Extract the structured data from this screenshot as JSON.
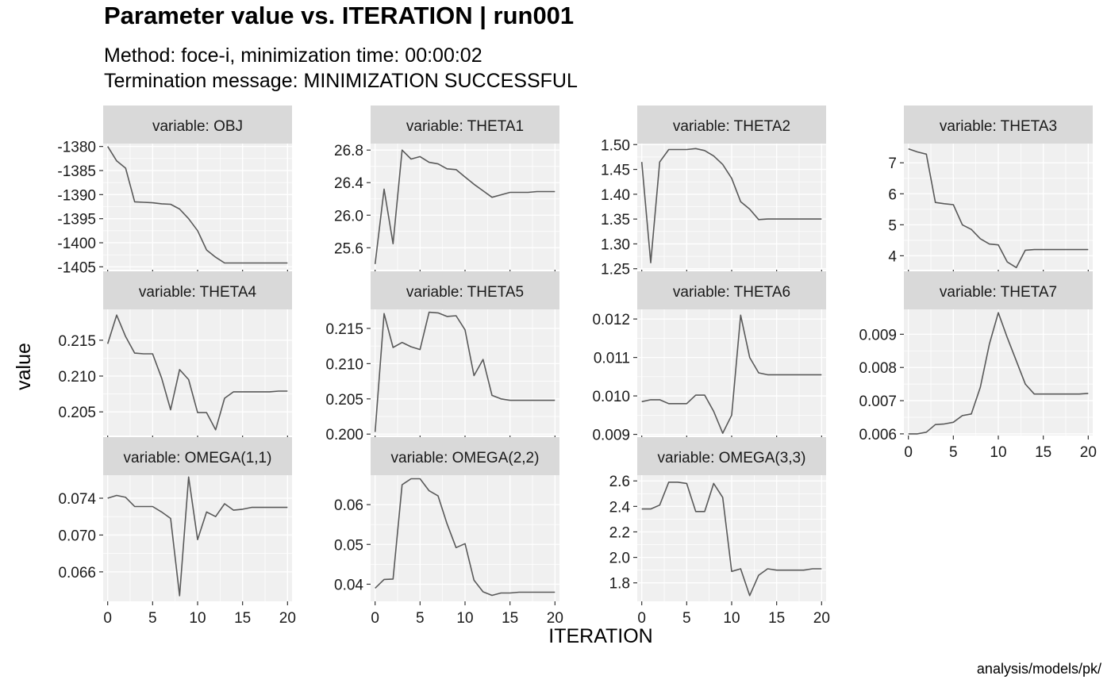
{
  "title": "Parameter value vs. ITERATION | run001",
  "subtitle": [
    "Method: foce-i, minimization time: 00:00:02",
    "Termination message: MINIMIZATION SUCCESSFUL"
  ],
  "caption": "analysis/models/pk/",
  "colors": {
    "panel_bg": "#f0f0f0",
    "strip_bg": "#d9d9d9",
    "grid": "#ffffff",
    "line": "#595959",
    "tick": "#333333"
  },
  "chart_data": {
    "type": "line",
    "xlabel": "ITERATION",
    "ylabel": "value",
    "facet_layout": "4 columns, free y scales",
    "x_ticks": [
      0,
      5,
      10,
      15,
      20
    ],
    "x_tick_labels": [
      "0",
      "5",
      "10",
      "15",
      "20"
    ],
    "xlim": [
      -0.5,
      20.5
    ],
    "x": [
      0,
      1,
      2,
      3,
      4,
      5,
      6,
      7,
      8,
      9,
      10,
      11,
      12,
      13,
      14,
      15,
      16,
      17,
      18,
      19,
      20
    ],
    "panels": [
      {
        "strip": "variable: OBJ",
        "ylim": [
          -1405.6,
          -1379.4
        ],
        "y_ticks": [
          -1380,
          -1385,
          -1390,
          -1395,
          -1400,
          -1405
        ],
        "y_tick_labels": [
          "-1380",
          "-1385",
          "-1390",
          "-1395",
          "-1400",
          "-1405"
        ],
        "values": [
          -1380,
          -1383,
          -1384.5,
          -1391.5,
          -1391.6,
          -1391.7,
          -1391.9,
          -1392,
          -1393,
          -1395,
          -1397.5,
          -1401.5,
          -1403,
          -1404.2,
          -1404.2,
          -1404.2,
          -1404.2,
          -1404.2,
          -1404.2,
          -1404.2,
          -1404.2
        ]
      },
      {
        "strip": "variable: THETA1",
        "ylim": [
          25.33,
          26.88
        ],
        "y_ticks": [
          25.6,
          26.0,
          26.4,
          26.8
        ],
        "y_tick_labels": [
          "25.6",
          "26.0",
          "26.4",
          "26.8"
        ],
        "values": [
          25.4,
          26.32,
          25.65,
          26.8,
          26.69,
          26.72,
          26.65,
          26.63,
          26.57,
          26.56,
          26.47,
          26.38,
          26.3,
          26.22,
          26.25,
          26.28,
          26.28,
          26.28,
          26.29,
          26.29,
          26.29
        ]
      },
      {
        "strip": "variable: THETA2",
        "ylim": [
          1.248,
          1.502
        ],
        "y_ticks": [
          1.25,
          1.3,
          1.35,
          1.4,
          1.45,
          1.5
        ],
        "y_tick_labels": [
          "1.25",
          "1.30",
          "1.35",
          "1.40",
          "1.45",
          "1.50"
        ],
        "values": [
          1.465,
          1.262,
          1.465,
          1.49,
          1.49,
          1.49,
          1.492,
          1.488,
          1.477,
          1.46,
          1.432,
          1.385,
          1.37,
          1.349,
          1.35,
          1.35,
          1.35,
          1.35,
          1.35,
          1.35,
          1.35
        ]
      },
      {
        "strip": "variable: THETA3",
        "ylim": [
          3.55,
          7.62
        ],
        "y_ticks": [
          4,
          5,
          6,
          7
        ],
        "y_tick_labels": [
          "4",
          "5",
          "6",
          "7"
        ],
        "values": [
          7.45,
          7.35,
          7.28,
          5.72,
          5.68,
          5.65,
          5.0,
          4.85,
          4.55,
          4.38,
          4.35,
          3.8,
          3.62,
          4.18,
          4.2,
          4.2,
          4.2,
          4.2,
          4.2,
          4.2,
          4.2
        ]
      },
      {
        "strip": "variable: THETA4",
        "ylim": [
          0.2017,
          0.2193
        ],
        "y_ticks": [
          0.205,
          0.21,
          0.215
        ],
        "y_tick_labels": [
          "0.205",
          "0.210",
          "0.215"
        ],
        "values": [
          0.2145,
          0.2185,
          0.2155,
          0.2132,
          0.2131,
          0.2131,
          0.2097,
          0.2053,
          0.2109,
          0.2095,
          0.2049,
          0.2049,
          0.2025,
          0.2069,
          0.2078,
          0.2078,
          0.2078,
          0.2078,
          0.2078,
          0.2079,
          0.2079
        ]
      },
      {
        "strip": "variable: THETA5",
        "ylim": [
          0.1998,
          0.2177
        ],
        "y_ticks": [
          0.2,
          0.205,
          0.21,
          0.215
        ],
        "y_tick_labels": [
          "0.200",
          "0.205",
          "0.210",
          "0.215"
        ],
        "values": [
          0.2003,
          0.2171,
          0.2123,
          0.213,
          0.2124,
          0.212,
          0.2173,
          0.2172,
          0.2167,
          0.2168,
          0.2148,
          0.2083,
          0.2106,
          0.2055,
          0.205,
          0.2048,
          0.2048,
          0.2048,
          0.2048,
          0.2048,
          0.2048
        ]
      },
      {
        "strip": "variable: THETA6",
        "ylim": [
          0.00897,
          0.01225
        ],
        "y_ticks": [
          0.009,
          0.01,
          0.011,
          0.012
        ],
        "y_tick_labels": [
          "0.009",
          "0.010",
          "0.011",
          "0.012"
        ],
        "values": [
          0.00985,
          0.0099,
          0.0099,
          0.0098,
          0.0098,
          0.0098,
          0.01002,
          0.01002,
          0.0096,
          0.00903,
          0.0095,
          0.0121,
          0.011,
          0.0106,
          0.01055,
          0.01055,
          0.01055,
          0.01055,
          0.01055,
          0.01055,
          0.01055
        ]
      },
      {
        "strip": "variable: THETA7",
        "ylim": [
          0.00595,
          0.00975
        ],
        "y_ticks": [
          0.006,
          0.007,
          0.008,
          0.009
        ],
        "y_tick_labels": [
          "0.006",
          "0.007",
          "0.008",
          "0.009"
        ],
        "values": [
          0.006,
          0.006,
          0.00605,
          0.00628,
          0.0063,
          0.00635,
          0.00655,
          0.0066,
          0.0074,
          0.0087,
          0.00965,
          0.0089,
          0.0082,
          0.0075,
          0.0072,
          0.0072,
          0.0072,
          0.0072,
          0.0072,
          0.0072,
          0.00722
        ]
      },
      {
        "strip": "variable: OMEGA(1,1)",
        "ylim": [
          0.0628,
          0.0765
        ],
        "y_ticks": [
          0.066,
          0.07,
          0.074
        ],
        "y_tick_labels": [
          "0.066",
          "0.070",
          "0.074"
        ],
        "values": [
          0.074,
          0.0743,
          0.0741,
          0.0731,
          0.0731,
          0.0731,
          0.0725,
          0.0718,
          0.0634,
          0.0763,
          0.0695,
          0.0725,
          0.072,
          0.0734,
          0.0727,
          0.0728,
          0.073,
          0.073,
          0.073,
          0.073,
          0.073
        ]
      },
      {
        "strip": "variable: OMEGA(2,2)",
        "ylim": [
          0.0357,
          0.0674
        ],
        "y_ticks": [
          0.04,
          0.05,
          0.06
        ],
        "y_tick_labels": [
          "0.04",
          "0.05",
          "0.06"
        ],
        "values": [
          0.039,
          0.0412,
          0.0413,
          0.065,
          0.0665,
          0.0665,
          0.0635,
          0.0622,
          0.0552,
          0.0492,
          0.0502,
          0.041,
          0.0381,
          0.0372,
          0.0378,
          0.0378,
          0.038,
          0.038,
          0.038,
          0.038,
          0.038
        ]
      },
      {
        "strip": "variable: OMEGA(3,3)",
        "ylim": [
          1.655,
          2.645
        ],
        "y_ticks": [
          1.8,
          2.0,
          2.2,
          2.4,
          2.6
        ],
        "y_tick_labels": [
          "1.8",
          "2.0",
          "2.2",
          "2.4",
          "2.6"
        ],
        "values": [
          2.38,
          2.38,
          2.41,
          2.59,
          2.59,
          2.58,
          2.36,
          2.36,
          2.58,
          2.47,
          1.89,
          1.91,
          1.7,
          1.86,
          1.91,
          1.9,
          1.9,
          1.9,
          1.9,
          1.91,
          1.91
        ]
      }
    ]
  }
}
